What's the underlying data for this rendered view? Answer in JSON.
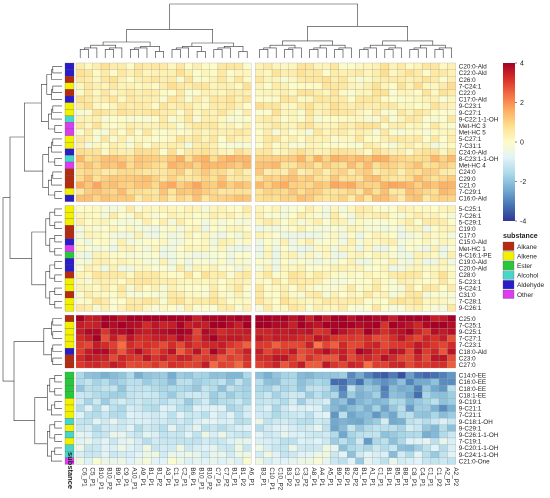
{
  "chart_data": {
    "type": "heatmap",
    "title": "",
    "rows": [
      {
        "label": "C20:0-Ald",
        "substance": "Aldehyde",
        "level": 0.3
      },
      {
        "label": "C22:0-Ald",
        "substance": "Aldehyde",
        "level": 0.4
      },
      {
        "label": "C26:0",
        "substance": "Alkane",
        "level": 0.3
      },
      {
        "label": "7-C24:1",
        "substance": "Alkene",
        "level": 0.4
      },
      {
        "label": "C22:0",
        "substance": "Alkane",
        "level": 0.3
      },
      {
        "label": "C17:0-Ald",
        "substance": "Aldehyde",
        "level": 0.3
      },
      {
        "label": "9-C23:1",
        "substance": "Alkene",
        "level": 0.4
      },
      {
        "label": "9-C27:1",
        "substance": "Alkene",
        "level": 0.3
      },
      {
        "label": "9-C22:1-1-OH",
        "substance": "Alcohol",
        "level": 0.2
      },
      {
        "label": "Met-HC 3",
        "substance": "Other",
        "level": 0.3
      },
      {
        "label": "Met-HC 5",
        "substance": "Other",
        "level": 0.2
      },
      {
        "label": "5-C27:1",
        "substance": "Alkene",
        "level": 0.3
      },
      {
        "label": "7-C31:1",
        "substance": "Alkene",
        "level": 0.1
      },
      {
        "label": "C24:0-Ald",
        "substance": "Aldehyde",
        "level": 0.4
      },
      {
        "label": "8-C23:1-1-OH",
        "substance": "Alcohol",
        "level": 1.2
      },
      {
        "label": "Met-HC 4",
        "substance": "Other",
        "level": 1.1
      },
      {
        "label": "C24:0",
        "substance": "Alkane",
        "level": 0.8
      },
      {
        "label": "C29:0",
        "substance": "Alkane",
        "level": 1.0
      },
      {
        "label": "C21:0",
        "substance": "Alkane",
        "level": 1.3
      },
      {
        "label": "7-C29:1",
        "substance": "Alkene",
        "level": 1.0
      },
      {
        "label": "C16:0-Ald",
        "substance": "Aldehyde",
        "level": 0.9
      },
      {
        "label": "5-C25:1",
        "substance": "Alkene",
        "level": 0.1
      },
      {
        "label": "7-C26:1",
        "substance": "Alkene",
        "level": 0.1
      },
      {
        "label": "5-C29:1",
        "substance": "Alkene",
        "level": 0.1
      },
      {
        "label": "C19:0",
        "substance": "Alkane",
        "level": -0.1
      },
      {
        "label": "C17:0",
        "substance": "Alkane",
        "level": -0.1
      },
      {
        "label": "C15:0-Ald",
        "substance": "Aldehyde",
        "level": 0.0
      },
      {
        "label": "Met-HC 1",
        "substance": "Other",
        "level": -0.1
      },
      {
        "label": "9-C16:1-PE",
        "substance": "Ester",
        "level": -0.1
      },
      {
        "label": "C19:0-Ald",
        "substance": "Aldehyde",
        "level": -0.1
      },
      {
        "label": "C20:0-Ald",
        "substance": "Aldehyde",
        "level": 0.0
      },
      {
        "label": "C28:0",
        "substance": "Alkane",
        "level": 0.3
      },
      {
        "label": "5-C23:1",
        "substance": "Alkene",
        "level": 0.2
      },
      {
        "label": "9-C24:1",
        "substance": "Alkene",
        "level": 0.2
      },
      {
        "label": "C31:0",
        "substance": "Alkane",
        "level": 0.2
      },
      {
        "label": "7-C28:1",
        "substance": "Alkene",
        "level": 0.3
      },
      {
        "label": "9-C26:1",
        "substance": "Alkene",
        "level": 0.2
      },
      {
        "label": "C25:0",
        "substance": "Alkane",
        "level": 4.0
      },
      {
        "label": "7-C25:1",
        "substance": "Alkene",
        "level": 3.8
      },
      {
        "label": "9-C25:1",
        "substance": "Alkene",
        "level": 3.6
      },
      {
        "label": "7-C27:1",
        "substance": "Alkene",
        "level": 3.4
      },
      {
        "label": "7-C23:1",
        "substance": "Alkene",
        "level": 3.0
      },
      {
        "label": "C18:0-Ald",
        "substance": "Aldehyde",
        "level": 3.3
      },
      {
        "label": "C23:0",
        "substance": "Alkane",
        "level": 3.2
      },
      {
        "label": "C27:0",
        "substance": "Alkane",
        "level": 3.0
      },
      {
        "label": "C14:0-EE",
        "substance": "Ester",
        "level": -2.0
      },
      {
        "label": "C16:0-EE",
        "substance": "Ester",
        "level": -1.7
      },
      {
        "label": "C18:0-EE",
        "substance": "Ester",
        "level": -1.6
      },
      {
        "label": "C18:1-EE",
        "substance": "Ester",
        "level": -1.5
      },
      {
        "label": "9-C19:1",
        "substance": "Alkene",
        "level": -1.4
      },
      {
        "label": "9-C21:1",
        "substance": "Alkene",
        "level": -1.2
      },
      {
        "label": "7-C21:1",
        "substance": "Alkene",
        "level": -1.2
      },
      {
        "label": "9-C18:1-OH",
        "substance": "Alcohol",
        "level": -1.0
      },
      {
        "label": "9-C29:1",
        "substance": "Alkene",
        "level": -1.1
      },
      {
        "label": "9-C26:1-1-OH",
        "substance": "Alcohol",
        "level": -0.9
      },
      {
        "label": "7-C19:1",
        "substance": "Alkene",
        "level": -1.0
      },
      {
        "label": "9-C20:1-1-OH",
        "substance": "Alcohol",
        "level": -0.8
      },
      {
        "label": "9-C24:1-1-OH",
        "substance": "Alcohol",
        "level": -0.8
      },
      {
        "label": "C21:0-One",
        "substance": "Other",
        "level": -0.5
      }
    ],
    "row_group_sizes": [
      21,
      16,
      8,
      14
    ],
    "columns": [
      "C6_P1",
      "C5_P1",
      "B10_P1",
      "B10_P2",
      "B9_P1",
      "C9_P1",
      "A10_P1",
      "A9_P1",
      "B1_P1",
      "B1_P2",
      "A3_P1",
      "C1_P1",
      "C2_P1",
      "B6_P1",
      "B10_P1",
      "B10_P2",
      "C7_P1",
      "C7_P2",
      "B1_P1",
      "B1_P2",
      "A6_P1",
      "B3_P1",
      "C10_P1",
      "C10_P2",
      "B3_P2",
      "C3_P1",
      "C3_P2",
      "A8_P1",
      "A4_P1",
      "A5_P1",
      "B9_P1",
      "B2_P1",
      "B2_P2",
      "B1_P1",
      "A1_P1",
      "C1_P1",
      "B1_P1",
      "B5_P1",
      "B8_P1",
      "C8_P1",
      "C4_P1",
      "C1_P1",
      "C1_P2",
      "A2_P1",
      "A2_P2"
    ],
    "column_group_sizes": [
      21,
      24
    ],
    "substance_annotation_label": "substance",
    "color_scale": {
      "min": -4,
      "max": 4,
      "ticks": [
        4,
        2,
        0,
        -2,
        -4
      ],
      "stops": [
        "#313695",
        "#4575b4",
        "#74add1",
        "#abd9e9",
        "#e0f3f8",
        "#fdfcc9",
        "#fee090",
        "#fdae61",
        "#f46d43",
        "#d73027",
        "#a50026"
      ]
    },
    "legend": {
      "title": "substance",
      "entries": [
        {
          "name": "Alkane",
          "color": "#b42b10"
        },
        {
          "name": "Alkene",
          "color": "#f2f200"
        },
        {
          "name": "Ester",
          "color": "#28c83c"
        },
        {
          "name": "Alcohol",
          "color": "#46d7c8"
        },
        {
          "name": "Aldehyde",
          "color": "#2a1cc8"
        },
        {
          "name": "Other",
          "color": "#dc3cf0"
        }
      ]
    },
    "row_dendrogram": true,
    "column_dendrogram": true
  }
}
